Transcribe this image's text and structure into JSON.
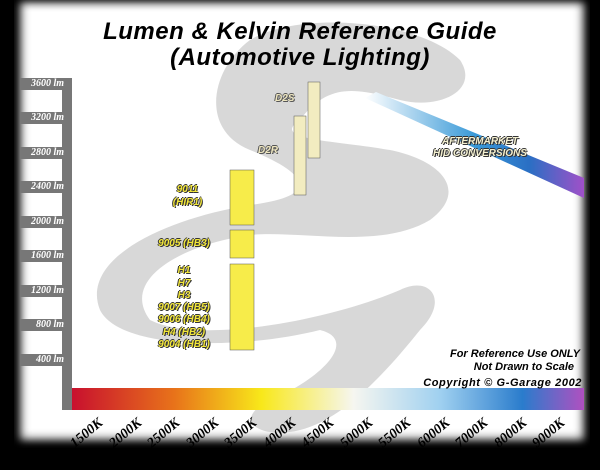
{
  "title_line1": "Lumen & Kelvin Reference Guide",
  "title_line2": "(Automotive Lighting)",
  "y_axis_ticks": [
    "3600 lm",
    "3200 lm",
    "2800 lm",
    "2400 lm",
    "2000 lm",
    "1600 lm",
    "1200 lm",
    "800 lm",
    "400 lm"
  ],
  "x_axis_ticks": [
    "1500K",
    "2000K",
    "2500K",
    "3000K",
    "3500K",
    "4000K",
    "4500K",
    "5000K",
    "5500K",
    "6000K",
    "7000K",
    "8000K",
    "9000K"
  ],
  "halogen_labels": {
    "hir1_line1": "9011",
    "hir1_line2": "(HIR1)",
    "hb3": "9005 (HB3)",
    "group": [
      "H1",
      "H7",
      "H3",
      "9007 (HB5)",
      "9006 (HB4)",
      "H4 (HB2)",
      "9004 (HB1)"
    ]
  },
  "hid_labels": {
    "d2s": "D2S",
    "d2r": "D2R"
  },
  "aftermarket_line1": "AFTERMARKET",
  "aftermarket_line2": "HID CONVERSIONS",
  "note_line1": "For Reference Use ONLY",
  "note_line2": "Not Drawn to Scale",
  "copyright": "Copyright © G-Garage 2002",
  "colors": {
    "halogen_bar": "#f7ec4a",
    "hid_bar": "#f2ecc0",
    "axis": "#777777"
  }
}
